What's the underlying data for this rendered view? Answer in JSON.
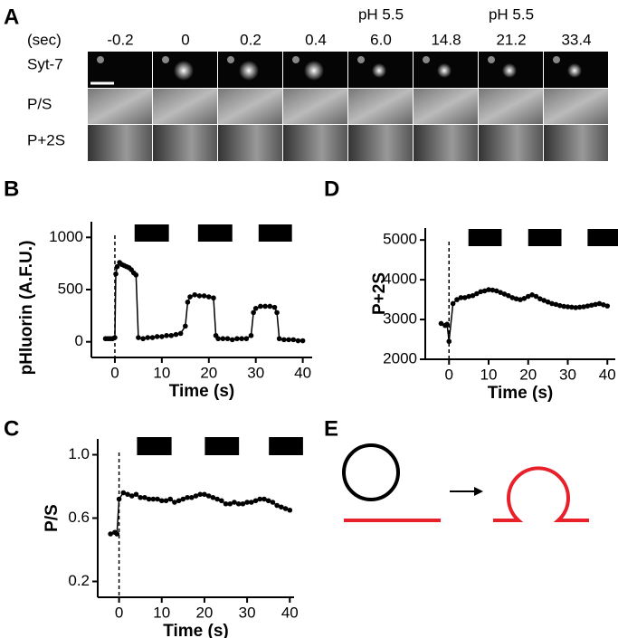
{
  "panel_labels": [
    "A",
    "B",
    "C",
    "D",
    "E"
  ],
  "panel_a": {
    "unit_label": "(sec)",
    "times": [
      "-0.2",
      "0",
      "0.2",
      "0.4",
      "6.0",
      "14.8",
      "21.2",
      "33.4"
    ],
    "ph_labels": [
      null,
      null,
      null,
      null,
      "pH 5.5",
      null,
      "pH 5.5",
      null
    ],
    "rows": [
      "Syt-7",
      "P/S",
      "P+2S"
    ]
  },
  "chart_data": [
    {
      "type": "line",
      "x_label": "Time (s)",
      "y_label": "pHluorin (A.F.U.)",
      "color": "#000000",
      "xlim": [
        -5,
        42
      ],
      "xticks": [
        0,
        10,
        20,
        30,
        40
      ],
      "ylim": [
        -150,
        1150
      ],
      "yticks": [
        0,
        500,
        1000
      ],
      "vline": 0,
      "acid_periods": [
        [
          4.2,
          11.5
        ],
        [
          17.7,
          25
        ],
        [
          30.6,
          37.7
        ]
      ],
      "x": [
        -2,
        -1.5,
        -1,
        -0.5,
        0,
        0.2,
        0.5,
        1,
        1.5,
        2,
        2.5,
        3,
        3.5,
        4,
        4.5,
        5,
        6,
        7,
        8,
        9,
        10,
        11,
        12,
        13,
        14,
        15,
        15.5,
        16,
        17,
        18,
        19,
        20,
        21,
        21.5,
        22,
        23,
        24,
        25,
        26,
        27,
        28,
        29,
        29.5,
        30,
        31,
        32,
        33,
        34,
        34.5,
        35,
        36,
        37,
        38,
        39,
        40
      ],
      "values": [
        30,
        30,
        30,
        30,
        40,
        650,
        720,
        760,
        740,
        730,
        720,
        710,
        690,
        660,
        640,
        40,
        30,
        40,
        40,
        50,
        50,
        60,
        60,
        70,
        80,
        150,
        380,
        430,
        450,
        440,
        440,
        430,
        420,
        60,
        30,
        30,
        30,
        20,
        30,
        30,
        30,
        60,
        280,
        320,
        340,
        340,
        340,
        330,
        280,
        30,
        20,
        20,
        20,
        10,
        10
      ]
    },
    {
      "type": "line",
      "x_label": "Time (s)",
      "y_label": "P/S",
      "color": "#000000",
      "xlim": [
        -5,
        41
      ],
      "xticks": [
        0,
        10,
        20,
        30,
        40
      ],
      "ylim": [
        0.1,
        1.1
      ],
      "yticks": [
        0.2,
        0.6,
        {
          "value": 1,
          "label": "1.0"
        }
      ],
      "vline": 0,
      "acid_periods": [
        [
          4.2,
          12.3
        ],
        [
          20.1,
          28.1
        ],
        [
          35.1,
          43.1
        ]
      ],
      "x": [
        -2,
        -1,
        -0.5,
        0,
        1,
        2,
        3,
        4,
        5,
        6,
        7,
        8,
        9,
        10,
        11,
        12,
        13,
        14,
        15,
        16,
        17,
        18,
        19,
        20,
        21,
        22,
        23,
        24,
        25,
        26,
        27,
        28,
        29,
        30,
        31,
        32,
        33,
        34,
        35,
        36,
        37,
        38,
        39,
        40
      ],
      "values": [
        0.5,
        0.51,
        0.5,
        0.72,
        0.76,
        0.75,
        0.74,
        0.75,
        0.73,
        0.73,
        0.72,
        0.72,
        0.72,
        0.71,
        0.71,
        0.72,
        0.7,
        0.71,
        0.72,
        0.73,
        0.73,
        0.74,
        0.75,
        0.75,
        0.74,
        0.73,
        0.72,
        0.71,
        0.69,
        0.69,
        0.7,
        0.69,
        0.69,
        0.7,
        0.7,
        0.71,
        0.72,
        0.72,
        0.71,
        0.7,
        0.68,
        0.67,
        0.66,
        0.65
      ]
    },
    {
      "type": "line",
      "x_label": "Time (s)",
      "y_label": "P+2S",
      "color": "#000000",
      "xlim": [
        -6,
        42
      ],
      "xticks": [
        0,
        10,
        20,
        30,
        40
      ],
      "ylim": [
        2000,
        5300
      ],
      "yticks": [
        2000,
        3000,
        4000,
        5000
      ],
      "vline": 0,
      "acid_periods": [
        [
          4.9,
          13.3
        ],
        [
          20,
          28.4
        ],
        [
          35,
          42.8
        ]
      ],
      "x": [
        -2,
        -1,
        -0.5,
        0,
        1,
        2,
        3,
        4,
        5,
        6,
        7,
        8,
        9,
        10,
        11,
        12,
        13,
        14,
        15,
        16,
        17,
        18,
        19,
        20,
        21,
        22,
        23,
        24,
        25,
        26,
        27,
        28,
        29,
        30,
        31,
        32,
        33,
        34,
        35,
        36,
        37,
        38,
        39,
        40
      ],
      "values": [
        2900,
        2850,
        2880,
        2450,
        3400,
        3500,
        3550,
        3550,
        3580,
        3600,
        3650,
        3700,
        3720,
        3750,
        3740,
        3720,
        3680,
        3640,
        3600,
        3550,
        3520,
        3500,
        3530,
        3580,
        3620,
        3580,
        3520,
        3480,
        3440,
        3400,
        3380,
        3350,
        3330,
        3320,
        3310,
        3300,
        3310,
        3320,
        3340,
        3360,
        3380,
        3400,
        3370,
        3340
      ]
    }
  ]
}
